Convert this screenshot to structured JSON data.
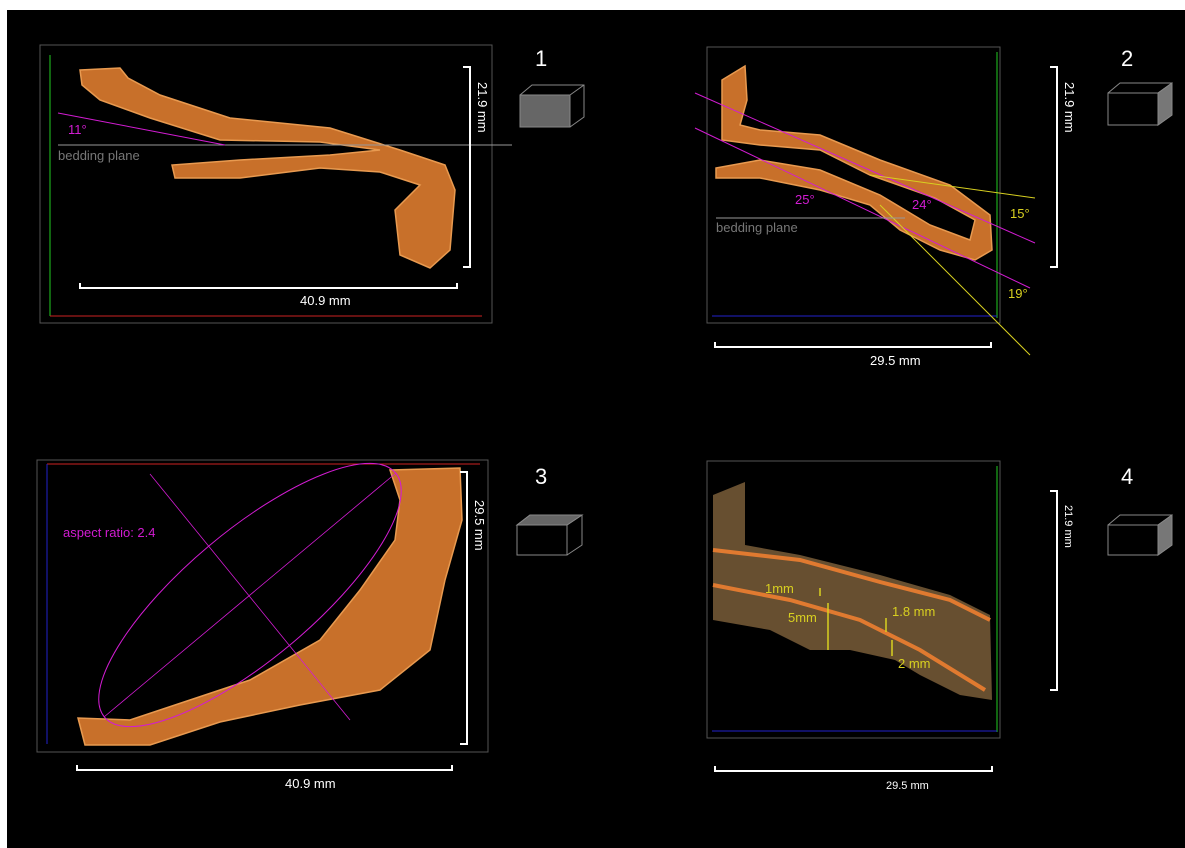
{
  "panels": [
    {
      "number": "1",
      "height_label": "21.9 mm",
      "width_label": "40.9 mm",
      "annotations": [
        "11°",
        "bedding plane"
      ]
    },
    {
      "number": "2",
      "height_label": "21.9 mm",
      "width_label": "29.5 mm",
      "annotations": [
        "25°",
        "24°",
        "15°",
        "19°",
        "bedding plane"
      ]
    },
    {
      "number": "3",
      "height_label": "29.5 mm",
      "width_label": "40.9 mm",
      "annotations": [
        "aspect ratio: 2.4"
      ]
    },
    {
      "number": "4",
      "height_label": "21.9 mm",
      "width_label": "29.5 mm",
      "annotations": [
        "1mm",
        "5mm",
        "1.8 mm",
        "2 mm"
      ]
    }
  ]
}
